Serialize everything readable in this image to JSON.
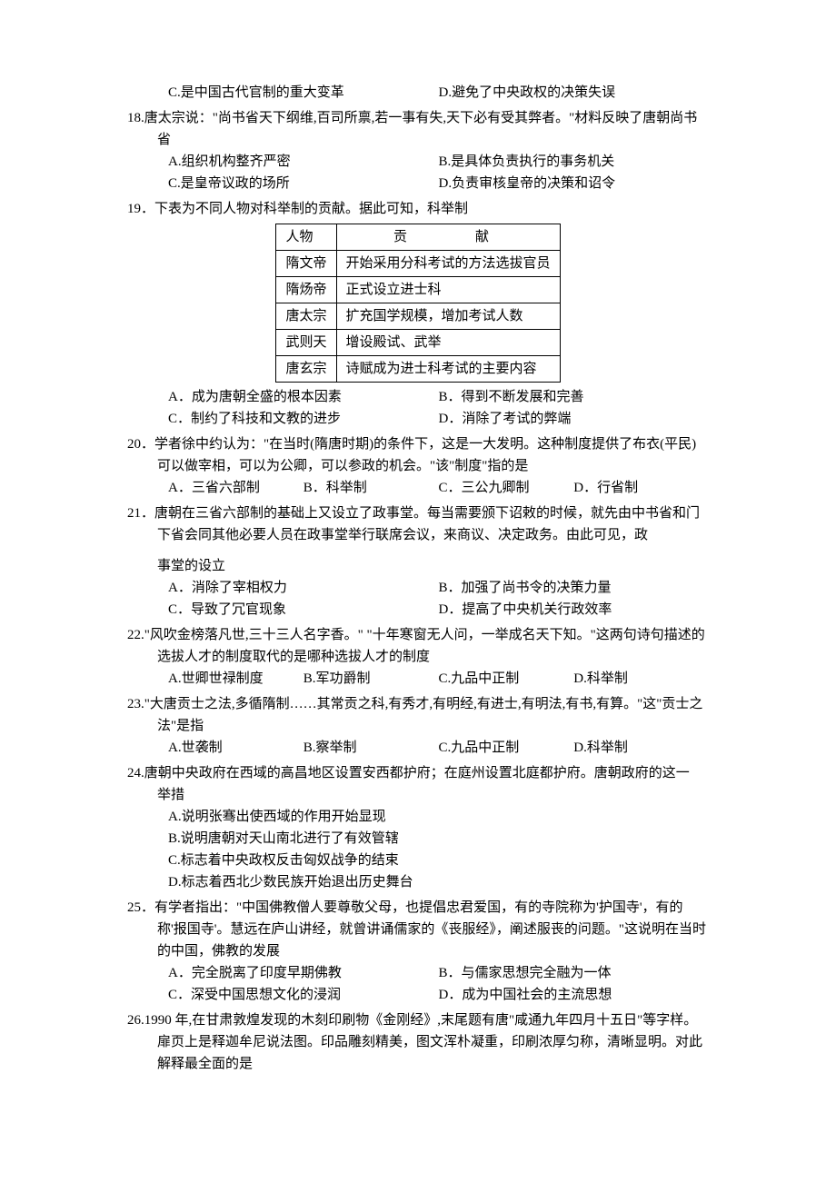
{
  "q17": {
    "C": "C.是中国古代官制的重大变革",
    "D": "D.避免了中央政权的决策失误"
  },
  "q18": {
    "stem": "18.唐太宗说：\"尚书省天下纲维,百司所禀,若一事有失,天下必有受其弊者。\"材料反映了唐朝尚书省",
    "A": "A.组织机构整齐严密",
    "B": "B.是具体负责执行的事务机关",
    "C": "C.是皇帝议政的场所",
    "D": "D.负责审核皇帝的决策和诏令"
  },
  "q19": {
    "stem": "19．下表为不同人物对科举制的贡献。据此可知，科举制",
    "table": {
      "header": [
        "人物",
        "贡　　献"
      ],
      "rows": [
        [
          "隋文帝",
          "开始采用分科考试的方法选拔官员"
        ],
        [
          "隋炀帝",
          "正式设立进士科"
        ],
        [
          "唐太宗",
          "扩充国学规模，增加考试人数"
        ],
        [
          "武则天",
          "增设殿试、武举"
        ],
        [
          "唐玄宗",
          "诗赋成为进士科考试的主要内容"
        ]
      ]
    },
    "A": "A．成为唐朝全盛的根本因素",
    "B": "B．得到不断发展和完善",
    "C": "C．制约了科技和文教的进步",
    "D": "D．消除了考试的弊端"
  },
  "q20": {
    "stem": "20．学者徐中约认为：\"在当时(隋唐时期)的条件下，这是一大发明。这种制度提供了布衣(平民)可以做宰相，可以为公卿，可以参政的机会。\"该\"制度\"指的是",
    "A": "A．三省六部制",
    "B": "B．科举制",
    "C": "C．三公九卿制",
    "D": "D．行省制"
  },
  "q21": {
    "stem": "21．唐朝在三省六部制的基础上又设立了政事堂。每当需要颁下诏敕的时候，就先由中书省和门下省会同其他必要人员在政事堂举行联席会议，来商议、决定政务。由此可见，政",
    "stem2": "事堂的设立",
    "A": "A．消除了宰相权力",
    "B": "B．加强了尚书令的决策力量",
    "C": "C．导致了冗官现象",
    "D": "D．提高了中央机关行政效率"
  },
  "q22": {
    "stem": "22.\"风吹金榜落凡世,三十三人名字香。\" \"十年寒窗无人问，一举成名天下知。\"这两句诗句描述的选拔人才的制度取代的是哪种选拔人才的制度",
    "A": "A.世卿世禄制度",
    "B": "B.军功爵制",
    "C": "C.九品中正制",
    "D": "D.科举制"
  },
  "q23": {
    "stem": "23.\"大唐贡士之法,多循隋制……其常贡之科,有秀才,有明经,有进士,有明法,有书,有算。\"这\"贡士之法\"是指",
    "A": "A.世袭制",
    "B": "B.察举制",
    "C": "C.九品中正制",
    "D": "D.科举制"
  },
  "q24": {
    "stem": "24.唐朝中央政府在西域的高昌地区设置安西都护府；在庭州设置北庭都护府。唐朝政府的这一",
    "stem2": "举措",
    "A": "A.说明张骞出使西域的作用开始显现",
    "B": "B.说明唐朝对天山南北进行了有效管辖",
    "C": "C.标志着中央政权反击匈奴战争的结束",
    "D": "D.标志着西北少数民族开始退出历史舞台"
  },
  "q25": {
    "stem": "25．有学者指出：\"中国佛教僧人要尊敬父母，也提倡忠君爱国，有的寺院称为'护国寺'，有的称'报国寺'。慧远在庐山讲经，就曾讲诵儒家的《丧服经》，阐述服丧的问题。\"这说明在当时的中国，佛教的发展",
    "A": "A．完全脱离了印度早期佛教",
    "B": "B．与儒家思想完全融为一体",
    "C": "C．深受中国思想文化的浸润",
    "D": "D．成为中国社会的主流思想"
  },
  "q26": {
    "stem": "26.1990 年,在甘肃敦煌发现的木刻印刷物《金刚经》,末尾题有唐\"咸通九年四月十五日\"等字样。扉页上是释迦牟尼说法图。印品雕刻精美，图文浑朴凝重，印刷浓厚匀称，清晰显明。对此解释最全面的是"
  }
}
